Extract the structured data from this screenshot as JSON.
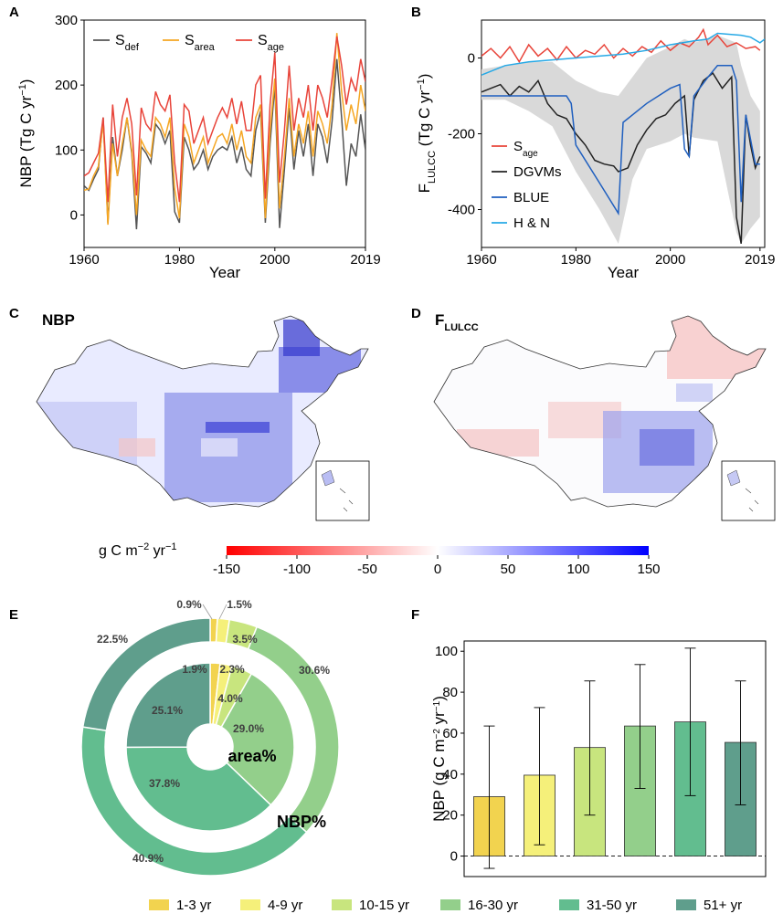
{
  "panels": {
    "A": {
      "letter": "A"
    },
    "B": {
      "letter": "B"
    },
    "C": {
      "letter": "C",
      "title": "NBP"
    },
    "D": {
      "letter": "D",
      "title_main": "F",
      "title_sub": "LULCC"
    },
    "E": {
      "letter": "E"
    },
    "F": {
      "letter": "F"
    }
  },
  "colors": {
    "s_def": "#555555",
    "s_area": "#f5a623",
    "s_age": "#e8443a",
    "dgvms": "#222222",
    "blue": "#1f5fbf",
    "hn": "#27a9e6",
    "band": "#d9d9d9"
  },
  "chart_data": [
    {
      "panel": "A",
      "type": "line",
      "xlabel": "Year",
      "ylabel_main": "NBP (Tg C yr",
      "ylabel_sup": "−1",
      "ylabel_close": ")",
      "xlim": [
        1960,
        2019
      ],
      "ylim": [
        -50,
        300
      ],
      "xticks": [
        {
          "v": 1960,
          "t": "1960"
        },
        {
          "v": 1980,
          "t": "1980"
        },
        {
          "v": 2000,
          "t": "2000"
        },
        {
          "v": 2019,
          "t": "2019"
        }
      ],
      "yticks": [
        {
          "v": 0,
          "t": "0"
        },
        {
          "v": 100,
          "t": "100"
        },
        {
          "v": 200,
          "t": "200"
        },
        {
          "v": 300,
          "t": "300"
        }
      ],
      "x_start": 1960,
      "series": [
        {
          "name": "S",
          "sub": "def",
          "color_key": "s_def",
          "values": [
            45,
            38,
            55,
            70,
            150,
            -12,
            120,
            60,
            100,
            150,
            95,
            -22,
            105,
            95,
            80,
            140,
            130,
            110,
            130,
            5,
            -12,
            120,
            100,
            70,
            80,
            100,
            70,
            90,
            100,
            105,
            100,
            120,
            80,
            105,
            70,
            60,
            130,
            160,
            -12,
            110,
            200,
            -20,
            70,
            165,
            70,
            130,
            90,
            140,
            60,
            140,
            120,
            80,
            145,
            240,
            150,
            45,
            110,
            90,
            155,
            100
          ]
        },
        {
          "name": "S",
          "sub": "area",
          "color_key": "s_area",
          "values": [
            38,
            40,
            60,
            75,
            145,
            -15,
            110,
            60,
            110,
            150,
            100,
            0,
            115,
            100,
            90,
            150,
            140,
            120,
            150,
            40,
            -5,
            140,
            120,
            80,
            100,
            120,
            80,
            100,
            120,
            125,
            110,
            140,
            100,
            130,
            90,
            80,
            150,
            170,
            -5,
            130,
            210,
            10,
            90,
            180,
            90,
            140,
            110,
            160,
            90,
            160,
            140,
            110,
            170,
            280,
            190,
            130,
            170,
            140,
            200,
            160
          ]
        },
        {
          "name": "S",
          "sub": "age",
          "color_key": "s_age",
          "values": [
            60,
            65,
            80,
            95,
            150,
            20,
            170,
            90,
            150,
            180,
            140,
            30,
            165,
            140,
            130,
            190,
            170,
            160,
            185,
            80,
            20,
            170,
            160,
            110,
            130,
            150,
            110,
            130,
            150,
            165,
            150,
            180,
            140,
            175,
            130,
            130,
            200,
            215,
            25,
            170,
            250,
            50,
            130,
            230,
            130,
            180,
            150,
            200,
            130,
            200,
            180,
            150,
            210,
            275,
            230,
            170,
            210,
            190,
            240,
            205
          ]
        }
      ]
    },
    {
      "panel": "B",
      "type": "line",
      "xlabel": "Year",
      "ylabel_main": "F",
      "ylabel_sub": "LULCC",
      "ylabel_rest": " (Tg C yr",
      "ylabel_sup": "−1",
      "ylabel_close": ")",
      "xlim": [
        1960,
        2020
      ],
      "ylim": [
        -500,
        100
      ],
      "xticks": [
        {
          "v": 1960,
          "t": "1960"
        },
        {
          "v": 1980,
          "t": "1980"
        },
        {
          "v": 2000,
          "t": "2000"
        },
        {
          "v": 2019,
          "t": "2019"
        }
      ],
      "yticks": [
        {
          "v": 0,
          "t": "0"
        },
        {
          "v": -200,
          "t": "-200"
        },
        {
          "v": -400,
          "t": "-400"
        }
      ],
      "band_lower_x": [
        1960,
        1965,
        1970,
        1975,
        1980,
        1985,
        1989,
        1992,
        1995,
        2000,
        2003,
        2005,
        2010,
        2014,
        2015,
        2017,
        2019
      ],
      "band_lower_y": [
        -110,
        -110,
        -140,
        -180,
        -300,
        -400,
        -490,
        -320,
        -240,
        -220,
        -200,
        -210,
        -220,
        -460,
        -490,
        -450,
        -420
      ],
      "band_upper_x": [
        1960,
        1965,
        1970,
        1975,
        1980,
        1985,
        1989,
        1992,
        1995,
        2000,
        2003,
        2005,
        2010,
        2014,
        2015,
        2017,
        2019
      ],
      "band_upper_y": [
        -30,
        -20,
        -10,
        -10,
        -60,
        -90,
        -100,
        -50,
        0,
        30,
        50,
        40,
        60,
        40,
        -20,
        -100,
        -140
      ],
      "series": [
        {
          "name": "S",
          "sub": "age",
          "color_key": "s_age",
          "x": [
            1960,
            1962,
            1964,
            1966,
            1968,
            1970,
            1972,
            1974,
            1976,
            1978,
            1980,
            1982,
            1984,
            1986,
            1988,
            1990,
            1992,
            1994,
            1996,
            1998,
            2000,
            2002,
            2004,
            2006,
            2007,
            2008,
            2010,
            2012,
            2014,
            2016,
            2018,
            2019
          ],
          "y": [
            5,
            25,
            0,
            30,
            -10,
            35,
            5,
            25,
            -5,
            30,
            0,
            20,
            10,
            35,
            0,
            25,
            5,
            30,
            15,
            45,
            20,
            40,
            30,
            55,
            75,
            35,
            60,
            30,
            40,
            25,
            30,
            20
          ]
        },
        {
          "name": "DGVMs",
          "color_key": "dgvms",
          "x": [
            1960,
            1962,
            1964,
            1966,
            1968,
            1970,
            1972,
            1974,
            1976,
            1978,
            1980,
            1982,
            1984,
            1986,
            1988,
            1989,
            1991,
            1993,
            1995,
            1997,
            1999,
            2001,
            2003,
            2004,
            2005,
            2007,
            2009,
            2011,
            2013,
            2014,
            2015,
            2016,
            2017,
            2018,
            2019
          ],
          "y": [
            -90,
            -80,
            -70,
            -100,
            -75,
            -90,
            -60,
            -120,
            -150,
            -160,
            -200,
            -230,
            -270,
            -280,
            -285,
            -300,
            -290,
            -230,
            -190,
            -160,
            -150,
            -120,
            -100,
            -260,
            -110,
            -60,
            -40,
            -80,
            -50,
            -420,
            -490,
            -150,
            -230,
            -290,
            -260
          ]
        },
        {
          "name": "BLUE",
          "color_key": "blue",
          "x": [
            1960,
            1970,
            1978,
            1979,
            1980,
            1985,
            1989,
            1990,
            1991,
            1995,
            2000,
            2002,
            2003,
            2004,
            2005,
            2008,
            2010,
            2013,
            2014,
            2015,
            2016,
            2018,
            2019
          ],
          "y": [
            -100,
            -100,
            -100,
            -120,
            -230,
            -330,
            -410,
            -170,
            -160,
            -120,
            -80,
            -70,
            -240,
            -260,
            -100,
            -50,
            -20,
            -20,
            -60,
            -380,
            -150,
            -280,
            -280
          ]
        },
        {
          "name": "H & N",
          "color_key": "hn",
          "x": [
            1960,
            1965,
            1970,
            1975,
            1980,
            1985,
            1990,
            1995,
            2000,
            2005,
            2008,
            2010,
            2015,
            2017,
            2019,
            2020
          ],
          "y": [
            -45,
            -20,
            -10,
            -5,
            0,
            5,
            10,
            20,
            35,
            45,
            50,
            65,
            60,
            55,
            40,
            50
          ]
        }
      ]
    },
    {
      "panel": "C/D",
      "type": "heatmap",
      "colorbar_label": "g C m",
      "colorbar_label_sup1": "−2",
      "colorbar_label_mid": " yr",
      "colorbar_label_sup2": "−1",
      "vlim": [
        -150,
        150
      ],
      "colorbar_ticks": [
        {
          "v": -150,
          "t": "-150"
        },
        {
          "v": -100,
          "t": "-100"
        },
        {
          "v": -50,
          "t": "-50"
        },
        {
          "v": 0,
          "t": "0"
        },
        {
          "v": 50,
          "t": "50"
        },
        {
          "v": 100,
          "t": "100"
        },
        {
          "v": 150,
          "t": "150"
        }
      ]
    },
    {
      "panel": "E",
      "type": "pie",
      "categories": [
        "1-3 yr",
        "4-9 yr",
        "10-15 yr",
        "16-30 yr",
        "31-50 yr",
        "51+ yr"
      ],
      "colors": [
        "#f2d34f",
        "#f5f07a",
        "#c8e57e",
        "#93cf8b",
        "#62bd8f",
        "#5f9e8c"
      ],
      "rings": [
        {
          "name": "NBP%",
          "values": [
            0.9,
            1.5,
            3.5,
            30.6,
            40.9,
            22.5
          ],
          "labels": [
            "0.9%",
            "1.5%",
            "3.5%",
            "30.6%",
            "40.9%",
            "22.5%"
          ]
        },
        {
          "name": "area%",
          "values": [
            1.9,
            2.3,
            4.0,
            29.0,
            37.8,
            25.1
          ],
          "labels": [
            "1.9%",
            "2.3%",
            "4.0%",
            "29.0%",
            "37.8%",
            "25.1%"
          ]
        }
      ]
    },
    {
      "panel": "F",
      "type": "bar",
      "categories": [
        "1-3 yr",
        "4-9 yr",
        "10-15 yr",
        "16-30 yr",
        "31-50 yr",
        "51+ yr"
      ],
      "values": [
        29,
        39.5,
        53,
        63.5,
        65.5,
        55.5
      ],
      "err_low": [
        -6,
        5.5,
        20,
        33,
        29.5,
        25
      ],
      "err_high": [
        63.5,
        72.5,
        85.5,
        93.5,
        101.5,
        85.5
      ],
      "colors": [
        "#f2d34f",
        "#f5f07a",
        "#c8e57e",
        "#93cf8b",
        "#62bd8f",
        "#5f9e8c"
      ],
      "ylabel_main": "NBP (g C m",
      "ylabel_sup1": "−2",
      "ylabel_mid": " yr",
      "ylabel_sup2": "−1",
      "ylabel_close": ")",
      "ylim": [
        -10,
        105
      ],
      "yticks": [
        {
          "v": 0,
          "t": "0"
        },
        {
          "v": 20,
          "t": "20"
        },
        {
          "v": 40,
          "t": "40"
        },
        {
          "v": 60,
          "t": "60"
        },
        {
          "v": 80,
          "t": "80"
        },
        {
          "v": 100,
          "t": "100"
        }
      ]
    }
  ],
  "legend_bottom": [
    {
      "label": "1-3 yr",
      "color": "#f2d34f"
    },
    {
      "label": "4-9 yr",
      "color": "#f5f07a"
    },
    {
      "label": "10-15 yr",
      "color": "#c8e57e"
    },
    {
      "label": "16-30 yr",
      "color": "#93cf8b"
    },
    {
      "label": "31-50 yr",
      "color": "#62bd8f"
    },
    {
      "label": "51+ yr",
      "color": "#5f9e8c"
    }
  ]
}
